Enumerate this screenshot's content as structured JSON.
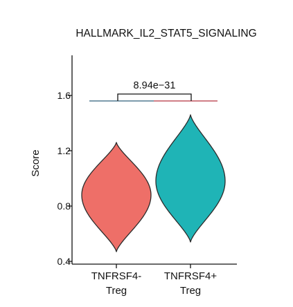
{
  "chart_data": {
    "type": "violin",
    "title": "HALLMARK_IL2_STAT5_SIGNALING",
    "xlabel": "",
    "ylabel": "Score",
    "ylim": [
      0.4,
      1.95
    ],
    "yticks": [
      0.4,
      0.8,
      1.2,
      1.6
    ],
    "categories": [
      {
        "line1": "TNFRSF4-",
        "line2": "Treg"
      },
      {
        "line1": "TNFRSF4+",
        "line2": "Treg"
      }
    ],
    "series": [
      {
        "color": "#ee6f68",
        "min": 0.47,
        "max": 1.26,
        "mode": 0.88
      },
      {
        "color": "#1fb4b6",
        "min": 0.54,
        "max": 1.46,
        "mode": 0.98
      }
    ],
    "annotation": {
      "text": "8.94e−31",
      "y_bracket": 1.61,
      "y_line": 1.56,
      "left_color": "#2f5f7a",
      "right_color": "#b5313d"
    }
  }
}
